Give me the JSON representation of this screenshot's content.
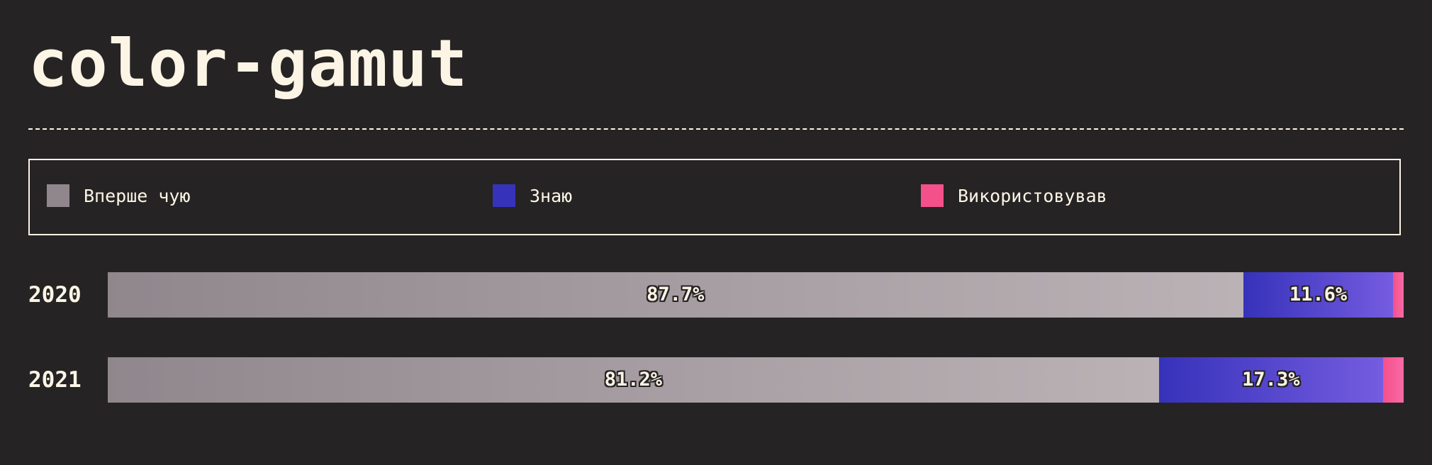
{
  "title": "color-gamut",
  "chart_data": {
    "type": "bar",
    "orientation": "horizontal",
    "stacked": true,
    "normalized": true,
    "categories": [
      "2020",
      "2021"
    ],
    "series": [
      {
        "name": "Вперше чую",
        "color": "#8f878c",
        "color_end": "#bab2b5",
        "values": [
          87.7,
          81.2
        ],
        "labels": [
          "87.7%",
          "81.2%"
        ]
      },
      {
        "name": "Знаю",
        "color": "#3632ba",
        "color_end": "#755ce0",
        "values": [
          11.6,
          17.3
        ],
        "labels": [
          "11.6%",
          "17.3%"
        ]
      },
      {
        "name": "Використовував",
        "color": "#f4508a",
        "color_end": "#f96aa6",
        "values": [
          0.8,
          1.6
        ],
        "labels": [
          "",
          ""
        ]
      }
    ],
    "xlim": [
      0,
      100
    ]
  }
}
